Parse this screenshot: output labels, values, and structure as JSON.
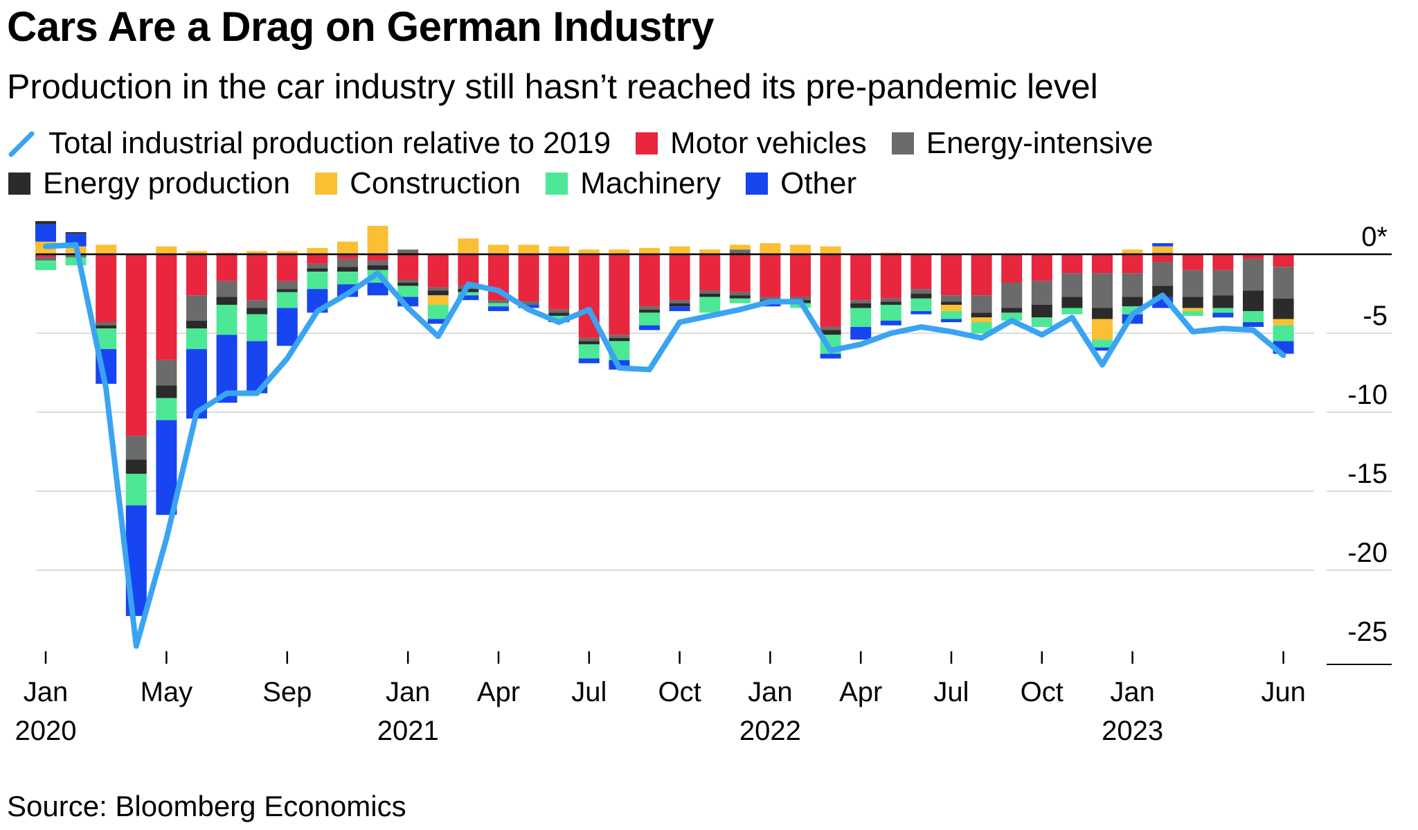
{
  "header": {
    "title": "Cars Are a Drag on German Industry",
    "subtitle": "Production in the car industry still hasn’t reached its pre-pandemic level"
  },
  "legend": {
    "line_label": "Total industrial production relative to 2019",
    "line_color": "#3aa4f2",
    "items": [
      {
        "label": "Motor vehicles",
        "color": "#e8263e"
      },
      {
        "label": "Energy-intensive",
        "color": "#6b6b6b"
      },
      {
        "label": "Energy production",
        "color": "#2b2b2b"
      },
      {
        "label": "Construction",
        "color": "#fbbf34"
      },
      {
        "label": "Machinery",
        "color": "#4ce895"
      },
      {
        "label": "Other",
        "color": "#1745f0"
      }
    ]
  },
  "source": "Source: Bloomberg Economics",
  "chart_data": {
    "type": "bar",
    "stacked": true,
    "x_tick_labels": [
      {
        "month": "Jan",
        "year": "2020",
        "index": 0
      },
      {
        "month": "May",
        "year": "",
        "index": 4
      },
      {
        "month": "Sep",
        "year": "",
        "index": 8
      },
      {
        "month": "Jan",
        "year": "2021",
        "index": 12
      },
      {
        "month": "Apr",
        "year": "",
        "index": 15
      },
      {
        "month": "Jul",
        "year": "",
        "index": 18
      },
      {
        "month": "Oct",
        "year": "",
        "index": 21
      },
      {
        "month": "Jan",
        "year": "2022",
        "index": 24
      },
      {
        "month": "Apr",
        "year": "",
        "index": 27
      },
      {
        "month": "Jul",
        "year": "",
        "index": 30
      },
      {
        "month": "Oct",
        "year": "",
        "index": 33
      },
      {
        "month": "Jan",
        "year": "2023",
        "index": 36
      },
      {
        "month": "Jun",
        "year": "",
        "index": 41
      }
    ],
    "y_ticks": [
      {
        "value": 0,
        "label": "0*"
      },
      {
        "value": -5,
        "label": "-5"
      },
      {
        "value": -10,
        "label": "-10"
      },
      {
        "value": -15,
        "label": "-15"
      },
      {
        "value": -20,
        "label": "-20"
      },
      {
        "value": -25,
        "label": "-25"
      }
    ],
    "ylim": [
      -25,
      2
    ],
    "series_order": [
      "Motor vehicles",
      "Energy-intensive",
      "Energy production",
      "Construction",
      "Machinery",
      "Other"
    ],
    "categories": [
      "2020-01",
      "2020-02",
      "2020-03",
      "2020-04",
      "2020-05",
      "2020-06",
      "2020-07",
      "2020-08",
      "2020-09",
      "2020-10",
      "2020-11",
      "2020-12",
      "2021-01",
      "2021-02",
      "2021-03",
      "2021-04",
      "2021-05",
      "2021-06",
      "2021-07",
      "2021-08",
      "2021-09",
      "2021-10",
      "2021-11",
      "2021-12",
      "2022-01",
      "2022-02",
      "2022-03",
      "2022-04",
      "2022-05",
      "2022-06",
      "2022-07",
      "2022-08",
      "2022-09",
      "2022-10",
      "2022-11",
      "2022-12",
      "2023-01",
      "2023-02",
      "2023-03",
      "2023-04",
      "2023-05",
      "2023-06"
    ],
    "series": [
      {
        "name": "Motor vehicles",
        "values": [
          -0.2,
          0,
          -4.3,
          -11.5,
          -6.7,
          -2.6,
          -1.7,
          -2.9,
          -1.7,
          -0.6,
          -0.3,
          -0.4,
          -1.6,
          -2.1,
          -2.0,
          -2.9,
          -3.0,
          -3.5,
          -5.3,
          -5.1,
          -3.3,
          -2.9,
          -2.3,
          -2.4,
          -2.7,
          -2.7,
          -4.6,
          -2.9,
          -2.8,
          -2.2,
          -2.6,
          -2.6,
          -1.8,
          -1.7,
          -1.2,
          -1.2,
          -1.2,
          -0.5,
          -1.0,
          -1.0,
          -0.3,
          -0.8
        ]
      },
      {
        "name": "Energy-intensive",
        "values": [
          -0.2,
          -0.2,
          -0.2,
          -1.5,
          -1.6,
          -1.6,
          -1.0,
          -0.5,
          -0.5,
          -0.3,
          -0.5,
          -0.3,
          -0.2,
          -0.2,
          -0.2,
          -0.2,
          -0.2,
          -0.2,
          -0.2,
          -0.2,
          -0.2,
          -0.2,
          -0.2,
          -0.2,
          -0.2,
          -0.2,
          -0.2,
          -0.2,
          -0.2,
          -0.3,
          -0.4,
          -1.1,
          -1.6,
          -1.5,
          -1.5,
          -2.2,
          -1.5,
          -1.5,
          -1.7,
          -1.6,
          -2.0,
          -2.0
        ]
      },
      {
        "name": "Energy production",
        "values": [
          0,
          0,
          -0.2,
          -0.9,
          -0.8,
          -0.5,
          -0.5,
          -0.4,
          -0.2,
          -0.2,
          -0.3,
          -0.3,
          -0.2,
          -0.3,
          -0.2,
          0,
          0,
          -0.2,
          -0.2,
          -0.2,
          -0.2,
          -0.2,
          -0.2,
          -0.2,
          -0.2,
          -0.2,
          -0.3,
          -0.3,
          -0.2,
          -0.3,
          -0.2,
          -0.3,
          -0.3,
          -0.8,
          -0.7,
          -0.7,
          -0.6,
          -0.7,
          -0.7,
          -0.8,
          -1.3,
          -1.3
        ]
      },
      {
        "name": "Construction",
        "values": [
          0,
          0,
          0,
          0,
          0,
          0,
          0,
          0,
          0,
          0,
          0,
          0,
          0,
          -0.6,
          0,
          0,
          0,
          0,
          0,
          0,
          0,
          0,
          0,
          0,
          0,
          0,
          0,
          0,
          0,
          0,
          -0.4,
          -0.3,
          0,
          0,
          0,
          -1.3,
          0,
          0,
          -0.2,
          0,
          0,
          -0.4
        ]
      },
      {
        "name": "Machinery",
        "values": [
          -0.6,
          -0.5,
          -1.3,
          -2.0,
          -1.4,
          -1.3,
          -1.9,
          -1.7,
          -1.0,
          -1.1,
          -0.8,
          -0.8,
          -0.7,
          -0.9,
          -0.2,
          -0.2,
          0,
          -0.2,
          -0.9,
          -1.2,
          -0.8,
          0,
          -1.0,
          -0.3,
          0,
          -0.3,
          -1.2,
          -1.2,
          -1.0,
          -0.8,
          -0.5,
          -0.7,
          -0.5,
          -0.6,
          -0.4,
          -0.5,
          -0.5,
          0,
          -0.3,
          -0.3,
          -0.7,
          -1.0
        ]
      },
      {
        "name": "Other",
        "values": [
          0,
          0,
          -2.2,
          -7.0,
          -6.0,
          -4.4,
          -4.3,
          -3.3,
          -2.4,
          -1.5,
          -0.8,
          -0.8,
          -0.6,
          -0.3,
          -0.3,
          -0.3,
          -0.2,
          -0.2,
          -0.3,
          -0.6,
          -0.3,
          -0.3,
          0,
          0,
          -0.2,
          0,
          -0.3,
          -0.8,
          -0.3,
          -0.2,
          -0.2,
          0,
          0,
          0,
          0,
          -0.2,
          -0.6,
          -0.7,
          0,
          -0.3,
          -0.3,
          -0.8
        ]
      }
    ],
    "positive_series": [
      {
        "name": "Energy-intensive",
        "values": [
          0,
          0,
          0,
          0,
          0,
          0,
          0,
          0,
          0,
          0,
          0,
          0,
          0.3,
          0,
          0,
          0,
          0,
          0,
          0,
          0,
          0,
          0,
          0,
          0.3,
          0,
          0,
          0,
          0,
          0,
          0,
          0,
          0,
          0,
          0,
          0,
          0,
          0,
          0.1,
          0,
          0,
          0,
          0
        ]
      },
      {
        "name": "Construction",
        "values": [
          0.8,
          0.5,
          0.6,
          0,
          0.5,
          0.2,
          0.1,
          0.2,
          0.2,
          0.4,
          0.8,
          1.8,
          0,
          0,
          1.0,
          0.6,
          0.6,
          0.5,
          0.3,
          0.3,
          0.4,
          0.5,
          0.3,
          0.3,
          0.7,
          0.6,
          0.5,
          0,
          0.1,
          0,
          0,
          0,
          0,
          0,
          0,
          0,
          0.3,
          0.4,
          0,
          0,
          0,
          0
        ]
      },
      {
        "name": "Other",
        "values": [
          1.1,
          0.8,
          0,
          0,
          0,
          0,
          0,
          0,
          0,
          0,
          0,
          0,
          0,
          0,
          0,
          0,
          0,
          0,
          0,
          0,
          0,
          0,
          0,
          0,
          0,
          0,
          0,
          0,
          0,
          0,
          0,
          0,
          0,
          0,
          0,
          0,
          0,
          0.2,
          0,
          0,
          0,
          0
        ]
      },
      {
        "name": "Energy production",
        "values": [
          0.2,
          0.1,
          0,
          0,
          0,
          0,
          0,
          0,
          0,
          0,
          0,
          0,
          0,
          0,
          0,
          0,
          0,
          0,
          0,
          0,
          0,
          0,
          0,
          0,
          0,
          0,
          0,
          0,
          0,
          0,
          0,
          0,
          0,
          0,
          0,
          0,
          0,
          0,
          0,
          0,
          0,
          0
        ]
      }
    ],
    "line": {
      "name": "Total industrial production relative to 2019",
      "values": [
        0.5,
        0.6,
        -8.5,
        -24.8,
        -18.0,
        -10.0,
        -8.8,
        -8.8,
        -6.6,
        -3.6,
        -2.5,
        -1.2,
        -3.4,
        -5.2,
        -1.9,
        -2.3,
        -3.5,
        -4.3,
        -3.5,
        -7.2,
        -7.3,
        -4.3,
        -3.9,
        -3.5,
        -3.0,
        -3.0,
        -6.1,
        -5.7,
        -5.0,
        -4.6,
        -4.9,
        -5.3,
        -4.2,
        -5.1,
        -4.0,
        -7.0,
        -3.8,
        -2.6,
        -4.9,
        -4.7,
        -4.8,
        -6.4
      ]
    }
  }
}
